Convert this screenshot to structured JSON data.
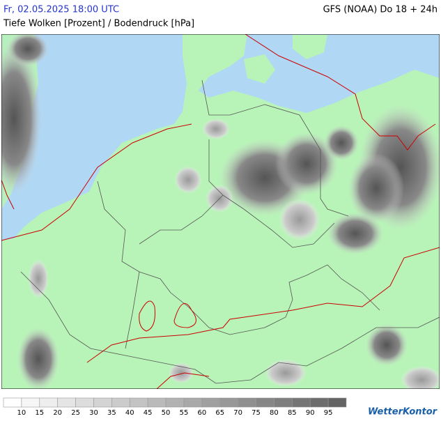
{
  "header": {
    "datetime": "Fr, 02.05.2025 18:00 UTC",
    "model": "GFS (NOAA) Do 18 + 24h",
    "subtitle": "Tiefe Wolken [Prozent] / Bodendruck [hPa]"
  },
  "legend": {
    "labels": [
      "10",
      "15",
      "20",
      "25",
      "30",
      "35",
      "40",
      "45",
      "50",
      "55",
      "60",
      "65",
      "70",
      "75",
      "80",
      "85",
      "90",
      "95"
    ]
  },
  "logo": "WetterKontor"
}
